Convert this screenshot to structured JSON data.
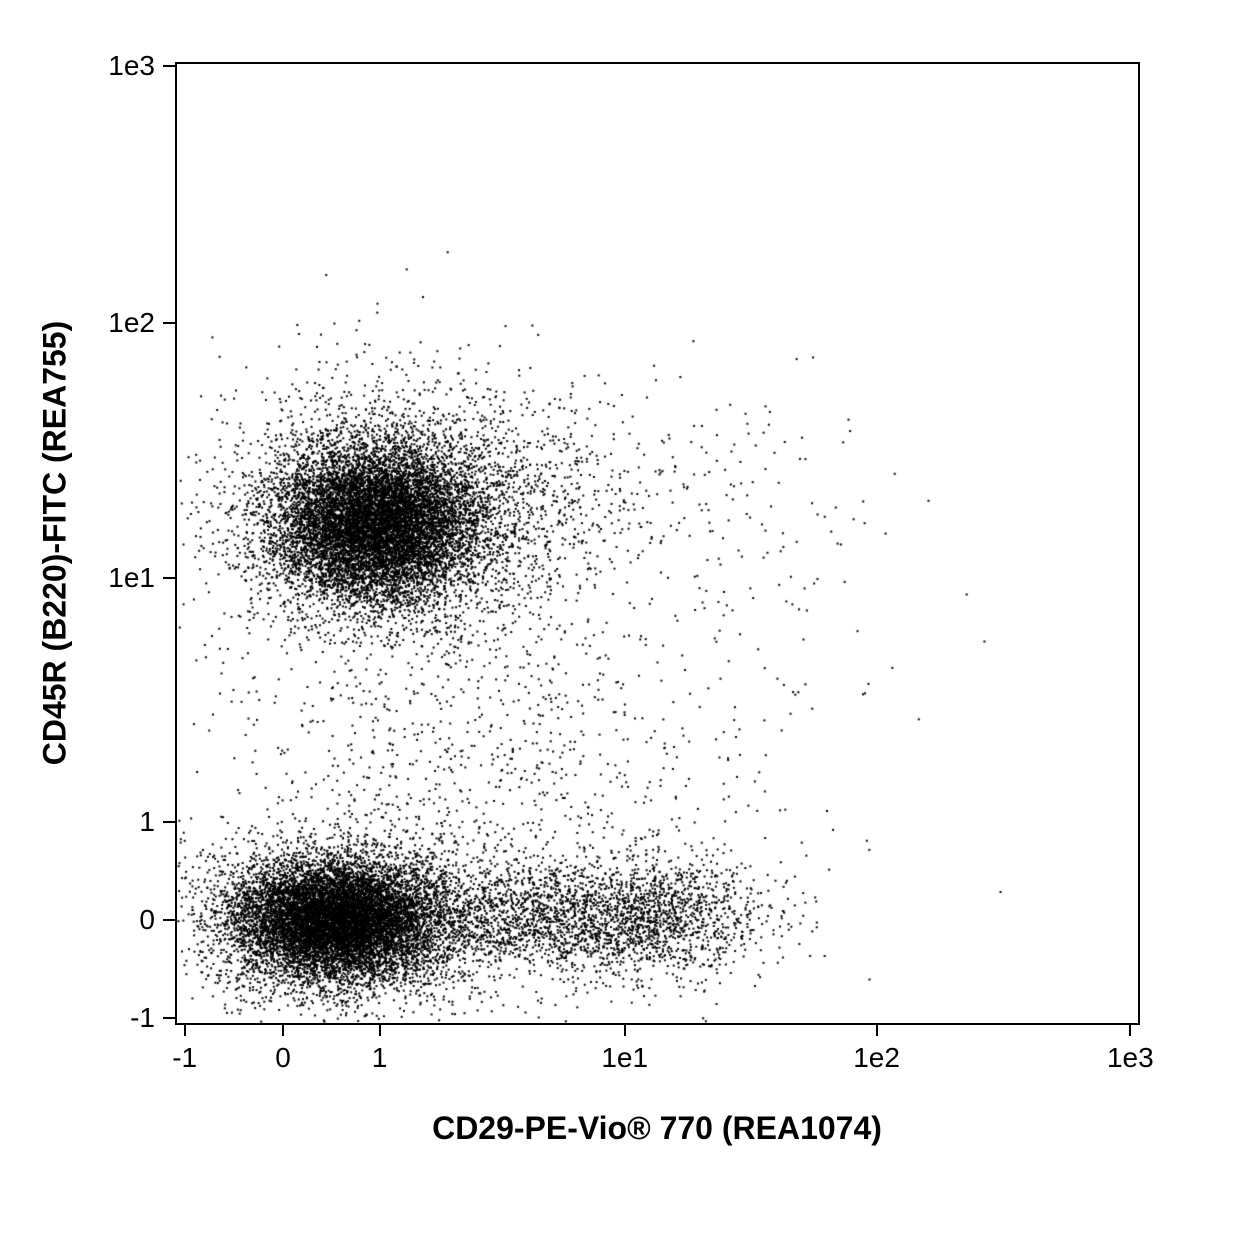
{
  "chart_data": {
    "type": "scatter",
    "title": "",
    "xlabel": "CD29-PE-Vio® 770 (REA1074)",
    "ylabel": "CD45R (B220)-FITC (REA755)",
    "x_scale": "biexponential",
    "y_scale": "biexponential",
    "x_ticks": [
      {
        "label": "-1",
        "f": 0.01
      },
      {
        "label": "0",
        "f": 0.112
      },
      {
        "label": "1",
        "f": 0.212
      },
      {
        "label": "1e1",
        "f": 0.466
      },
      {
        "label": "1e2",
        "f": 0.727
      },
      {
        "label": "1e3",
        "f": 0.99
      }
    ],
    "y_ticks": [
      {
        "label": "1e3",
        "f": 0.004
      },
      {
        "label": "1e2",
        "f": 0.271
      },
      {
        "label": "1e1",
        "f": 0.536
      },
      {
        "label": "1",
        "f": 0.789
      },
      {
        "label": "0",
        "f": 0.891
      },
      {
        "label": "-1",
        "f": 0.993
      }
    ],
    "point_color": "#000000",
    "point_size": 2,
    "seed": 42,
    "coords_note": "cx,cy,sx,sy are fractions of plot area; cy measured from top; axis is biexponential per tick fractions",
    "populations": [
      {
        "name": "cd45r-pos-core",
        "description": "Dense CD45R+ (B220+) population, CD29 ~0-2, CD45R ~1e1-3e1",
        "n": 9000,
        "cx": 0.205,
        "cy": 0.478,
        "sx": 0.052,
        "sy": 0.04
      },
      {
        "name": "cd45r-pos-halo",
        "description": "Speckled fringe around CD45R+ blob",
        "n": 2600,
        "cx": 0.215,
        "cy": 0.478,
        "sx": 0.085,
        "sy": 0.068
      },
      {
        "name": "cd45r-pos-right-spread",
        "description": "CD45R+ events spreading toward CD29 ~1e1",
        "n": 700,
        "cx": 0.32,
        "cy": 0.45,
        "sx": 0.1,
        "sy": 0.055
      },
      {
        "name": "cd45r-pos-upper-sparse",
        "description": "Sparse events up toward CD45R ~1e2",
        "n": 130,
        "cx": 0.26,
        "cy": 0.38,
        "sx": 0.09,
        "sy": 0.045
      },
      {
        "name": "cd45r-neg-core",
        "description": "Dense CD45R- population, CD29 ~0-2, CD45R ~0",
        "n": 9500,
        "cx": 0.165,
        "cy": 0.892,
        "sx": 0.052,
        "sy": 0.03
      },
      {
        "name": "cd45r-neg-halo",
        "description": "Speckled fringe around CD45R- blob, reaching y ~ -1",
        "n": 2200,
        "cx": 0.175,
        "cy": 0.892,
        "sx": 0.085,
        "sy": 0.05
      },
      {
        "name": "cd45r-neg-right-band",
        "description": "CD45R- CD29+ band extending to CD29 ~2e1",
        "n": 2000,
        "cx": 0.385,
        "cy": 0.888,
        "sx": 0.095,
        "sy": 0.03
      },
      {
        "name": "cd45r-neg-right-band-2",
        "description": "CD45R- CD29+ band extending to CD29 ~3e1",
        "n": 900,
        "cx": 0.5,
        "cy": 0.888,
        "sx": 0.055,
        "sy": 0.032
      },
      {
        "name": "intermediate-sparse",
        "description": "Sparse events between the two populations",
        "n": 1000,
        "cx": 0.33,
        "cy": 0.71,
        "sx": 0.145,
        "sy": 0.115
      },
      {
        "name": "right-outliers",
        "description": "Rare CD45R+ outliers out to CD29 ~1e2",
        "n": 140,
        "cx": 0.55,
        "cy": 0.47,
        "sx": 0.11,
        "sy": 0.06
      }
    ]
  }
}
